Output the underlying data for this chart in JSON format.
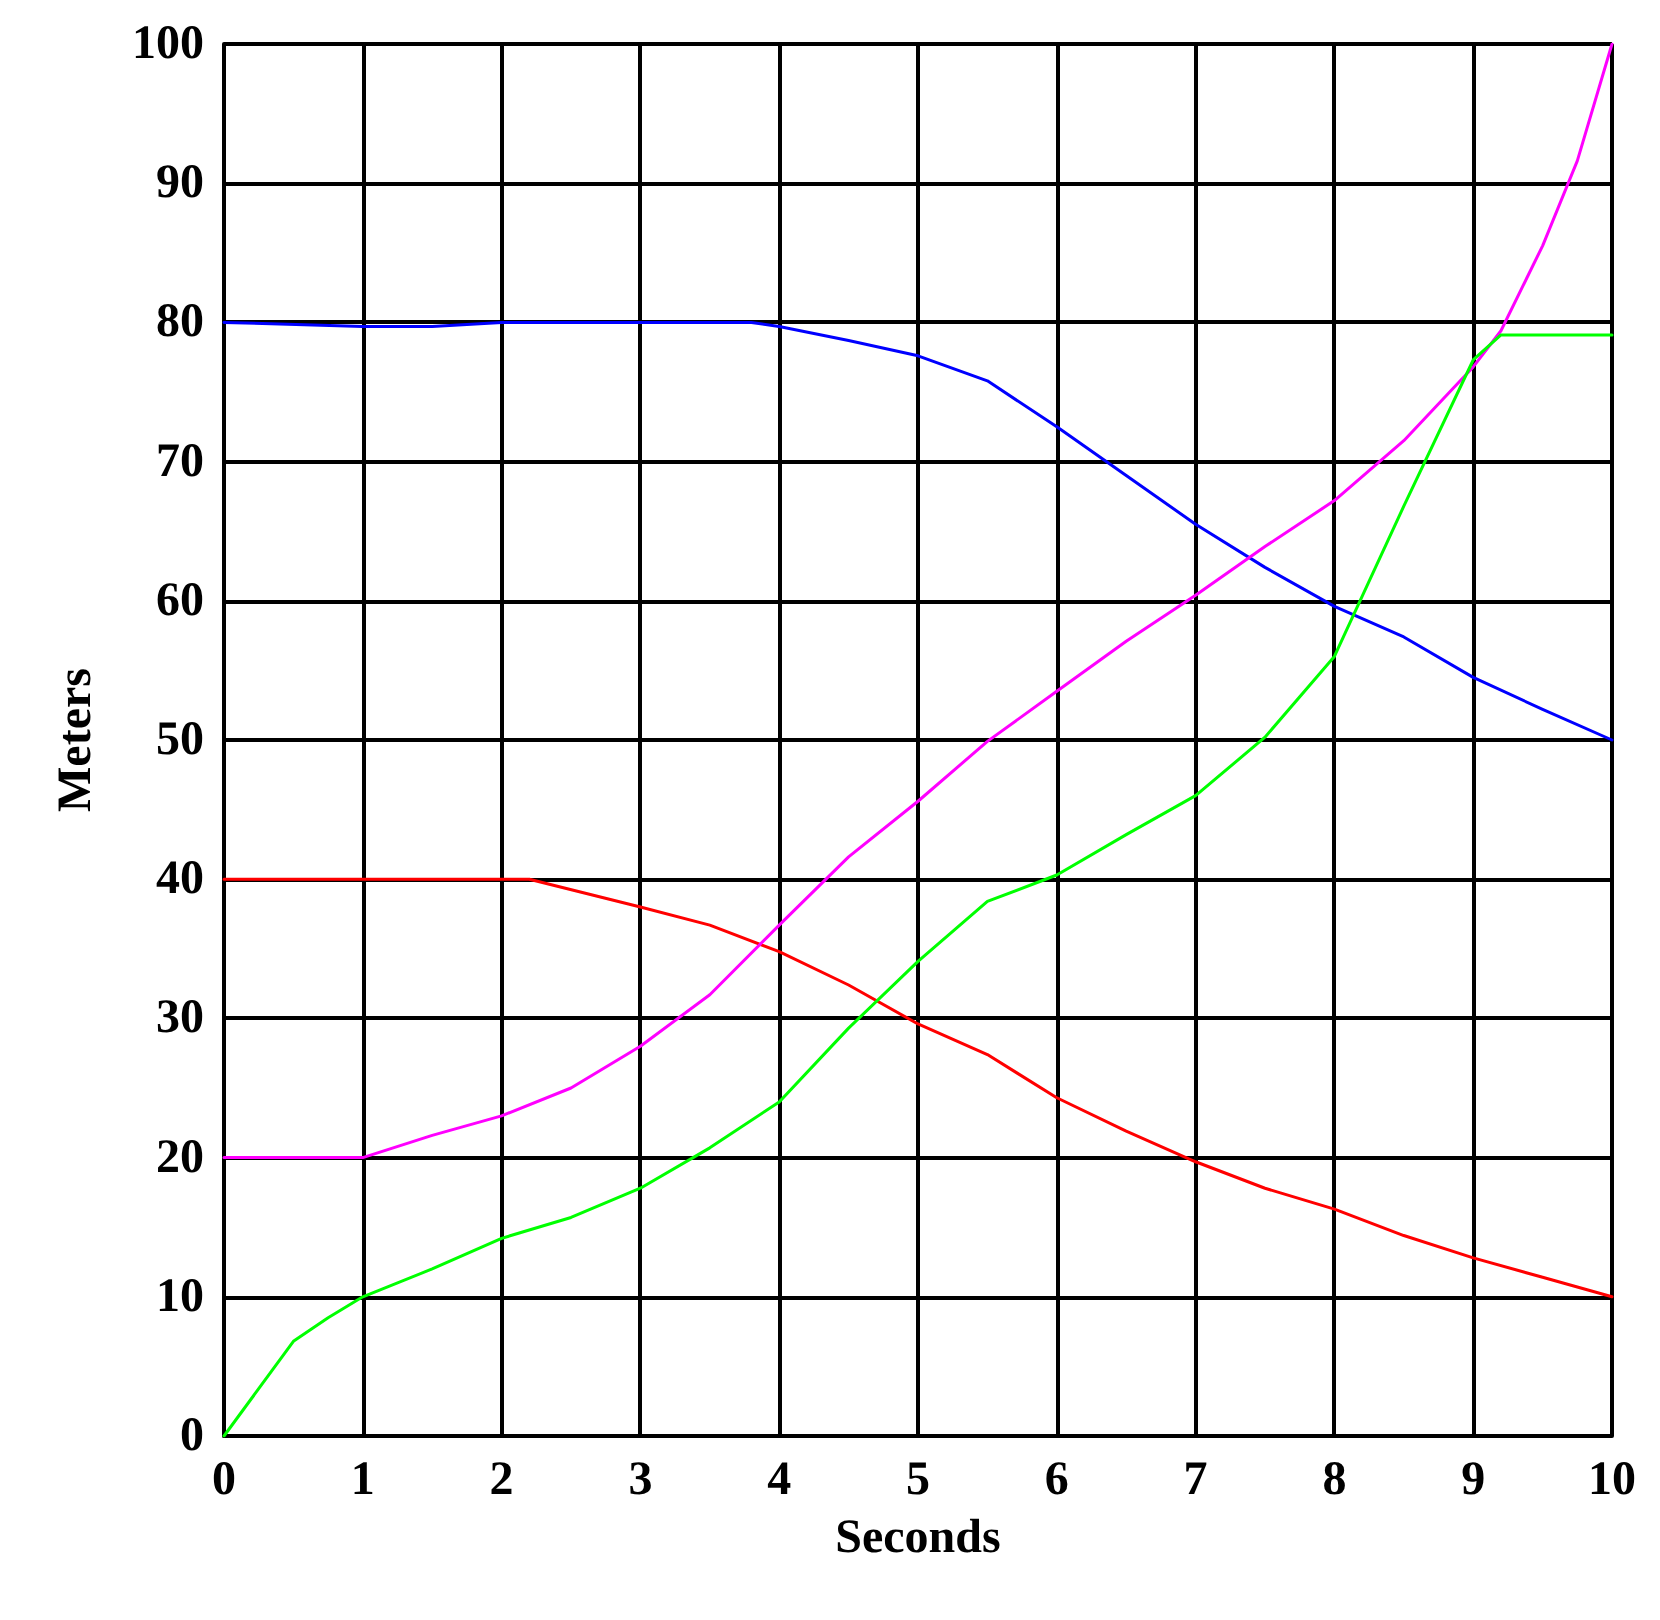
{
  "chart_data": {
    "type": "line",
    "xlabel": "Seconds",
    "ylabel": "Meters",
    "xlim": [
      0,
      10
    ],
    "ylim": [
      0,
      100
    ],
    "xticks": [
      0,
      1,
      2,
      3,
      4,
      5,
      6,
      7,
      8,
      9,
      10
    ],
    "yticks": [
      0,
      10,
      20,
      30,
      40,
      50,
      60,
      70,
      80,
      90,
      100
    ],
    "grid": true,
    "marker": "none",
    "line_style": "solid",
    "series": [
      {
        "color": "#0000ff",
        "x": [
          0,
          1,
          1.5,
          2,
          3,
          3.8,
          4,
          4.5,
          5,
          5.5,
          6,
          6.5,
          7,
          7.5,
          8,
          8.5,
          9,
          9.5,
          10
        ],
        "values": [
          80,
          79.7,
          79.7,
          80,
          80,
          80,
          79.7,
          78.7,
          77.6,
          75.8,
          72.5,
          69,
          65.5,
          62.4,
          59.6,
          57.4,
          54.5,
          52.2,
          50
        ]
      },
      {
        "color": "#ff0000",
        "x": [
          0,
          1,
          2,
          2.2,
          3,
          3.5,
          4,
          4.5,
          5,
          5.5,
          6,
          6.5,
          7,
          7.5,
          8,
          8.5,
          9,
          9.5,
          10
        ],
        "values": [
          40,
          40,
          40,
          40,
          38,
          36.7,
          34.8,
          32.4,
          29.6,
          27.4,
          24.3,
          21.9,
          19.7,
          17.8,
          16.3,
          14.4,
          12.8,
          11.4,
          10
        ]
      },
      {
        "color": "#ff00ff",
        "x": [
          0,
          0.5,
          1,
          1.5,
          2,
          2.5,
          3,
          3.5,
          4,
          4.5,
          5,
          5.5,
          6,
          6.5,
          7,
          7.5,
          8,
          8.5,
          9,
          9.2,
          9.5,
          9.75,
          10
        ],
        "values": [
          20,
          20,
          20,
          21.6,
          23,
          25,
          28,
          31.7,
          36.7,
          41.6,
          45.6,
          49.9,
          53.5,
          57.1,
          60.4,
          63.9,
          67.2,
          71.5,
          76.8,
          79.4,
          85.5,
          91.6,
          100
        ]
      },
      {
        "color": "#00ff00",
        "x": [
          0,
          0.25,
          0.5,
          0.75,
          1,
          1.5,
          2,
          2.5,
          3,
          3.5,
          4,
          4.5,
          5,
          5.5,
          6,
          6.5,
          7,
          7.5,
          8,
          8.5,
          9,
          9.2,
          9.6,
          10
        ],
        "values": [
          0,
          3.4,
          6.8,
          8.5,
          10,
          12,
          14.2,
          15.7,
          17.8,
          20.7,
          24,
          29.3,
          34.1,
          38.4,
          40.3,
          43.2,
          46,
          50.2,
          56,
          66.8,
          77.3,
          79.1,
          79.1,
          79.1
        ]
      }
    ]
  }
}
